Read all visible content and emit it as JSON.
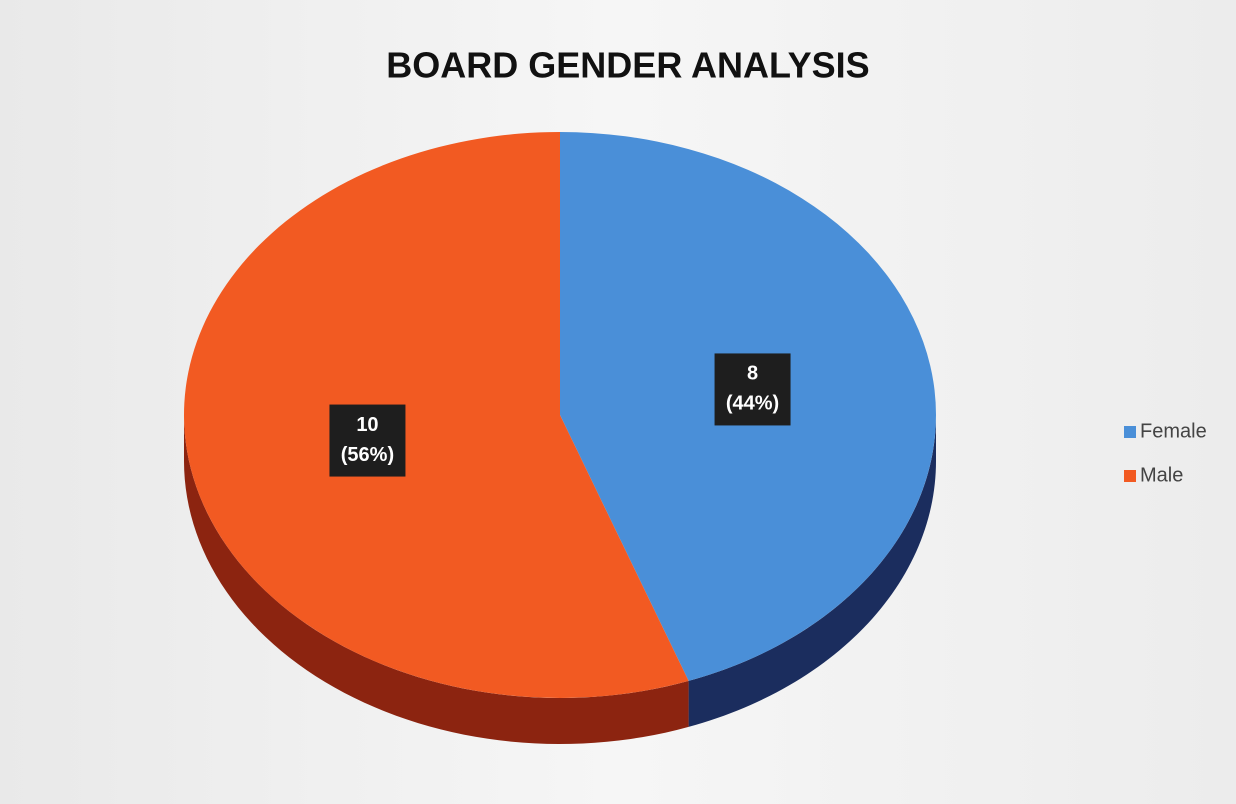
{
  "chart_data": {
    "type": "pie",
    "title": "BOARD GENDER ANALYSIS",
    "categories": [
      "Female",
      "Male"
    ],
    "values": [
      8,
      10
    ],
    "percent_labels": [
      "(44%)",
      "(56%)"
    ],
    "colors": [
      "#4a8fd8",
      "#f25a22"
    ],
    "side_colors": [
      "#1b2d5e",
      "#8c2410"
    ],
    "legend": "right"
  }
}
